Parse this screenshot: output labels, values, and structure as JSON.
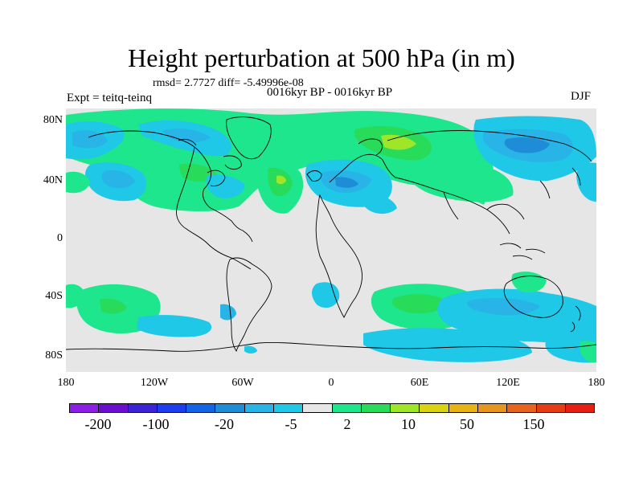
{
  "title": "Height perturbation at 500 hPa (in m)",
  "stats": "rmsd= 2.7727 diff= -5.49996e-08",
  "period": "0016kyr BP - 0016kyr BP",
  "experiment": "Expt = teitq-teinq",
  "season": "DJF",
  "latitude_labels": [
    "80N",
    "40N",
    "0",
    "40S",
    "80S"
  ],
  "longitude_labels": [
    "180",
    "120W",
    "60W",
    "0",
    "60E",
    "120E",
    "180"
  ],
  "colorbar": {
    "colors": [
      "#8c1ee6",
      "#6a0fcf",
      "#3c23d6",
      "#1e3cf0",
      "#1464e6",
      "#1e8cd7",
      "#28b4e6",
      "#1ec8e6",
      "#e6e6e6",
      "#1ee68c",
      "#28dc5a",
      "#a0e628",
      "#dcd214",
      "#e6b414",
      "#e6961e",
      "#e6641e",
      "#e63c14",
      "#e61e14"
    ],
    "labels": [
      "-200",
      "-100",
      "-20",
      "-5",
      "2",
      "10",
      "50",
      "150"
    ]
  },
  "map_fill": {
    "background": "#e6e6e6",
    "green": "#1ee68c",
    "dark_green": "#28dc5a",
    "yellow_green": "#a0e628",
    "cyan": "#1ec8e6",
    "sky": "#28b4e6",
    "blue": "#1e8cd7",
    "coast": "#000000"
  }
}
